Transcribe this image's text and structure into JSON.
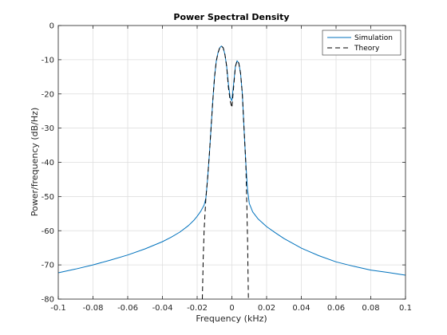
{
  "chart_data": {
    "type": "line",
    "title": "Power Spectral Density",
    "xlabel": "Frequency (kHz)",
    "ylabel": "Power/frequency (dB/Hz)",
    "xlim": [
      -0.1,
      0.1
    ],
    "ylim": [
      -80,
      0
    ],
    "xticks": [
      -0.1,
      -0.08,
      -0.06,
      -0.04,
      -0.02,
      0,
      0.02,
      0.04,
      0.06,
      0.08,
      0.1
    ],
    "xtick_labels": [
      "-0.1",
      "-0.08",
      "-0.06",
      "-0.04",
      "-0.02",
      "0",
      "0.02",
      "0.04",
      "0.06",
      "0.08",
      "0.1"
    ],
    "yticks": [
      0,
      -10,
      -20,
      -30,
      -40,
      -50,
      -60,
      -70,
      -80
    ],
    "ytick_labels": [
      "0",
      "-10",
      "-20",
      "-30",
      "-40",
      "-50",
      "-60",
      "-70",
      "-80"
    ],
    "grid": true,
    "legend_position": "top-right",
    "series": [
      {
        "name": "Simulation",
        "color": "#0072BD",
        "style": "solid",
        "x": [
          -0.1,
          -0.09,
          -0.08,
          -0.07,
          -0.06,
          -0.05,
          -0.04,
          -0.035,
          -0.03,
          -0.025,
          -0.022,
          -0.02,
          -0.018,
          -0.016,
          -0.015,
          -0.014,
          -0.013,
          -0.012,
          -0.011,
          -0.01,
          -0.009,
          -0.008,
          -0.007,
          -0.006,
          -0.005,
          -0.004,
          -0.003,
          -0.002,
          -0.001,
          0,
          0.001,
          0.002,
          0.003,
          0.004,
          0.005,
          0.006,
          0.007,
          0.008,
          0.009,
          0.01,
          0.012,
          0.015,
          0.02,
          0.025,
          0.03,
          0.04,
          0.05,
          0.06,
          0.07,
          0.08,
          0.09,
          0.1
        ],
        "y": [
          -72.3,
          -71.2,
          -70,
          -68.6,
          -67.1,
          -65.3,
          -63.2,
          -61.9,
          -60.4,
          -58.5,
          -57,
          -55.8,
          -54.4,
          -52.5,
          -50.5,
          -45,
          -38,
          -30,
          -22,
          -15,
          -10.5,
          -8,
          -6.5,
          -6,
          -6.5,
          -8.5,
          -12,
          -17,
          -21,
          -22,
          -17,
          -12,
          -10.3,
          -11,
          -14,
          -20,
          -30,
          -40,
          -48,
          -52,
          -54.5,
          -56.5,
          -58.8,
          -60.6,
          -62.3,
          -65.1,
          -67.3,
          -69.1,
          -70.4,
          -71.5,
          -72.2,
          -73
        ]
      },
      {
        "name": "Theory",
        "color": "#000000",
        "style": "dashed",
        "x": [
          -0.017,
          -0.0165,
          -0.016,
          -0.015,
          -0.014,
          -0.013,
          -0.012,
          -0.011,
          -0.01,
          -0.009,
          -0.008,
          -0.007,
          -0.006,
          -0.005,
          -0.004,
          -0.003,
          -0.002,
          -0.001,
          0,
          0.001,
          0.002,
          0.003,
          0.004,
          0.005,
          0.006,
          0.007,
          0.008,
          0.0085,
          0.009,
          0.0095
        ],
        "y": [
          -80,
          -68,
          -60,
          -50.5,
          -45,
          -38,
          -30,
          -22,
          -15,
          -10.5,
          -8,
          -6.5,
          -6,
          -6.5,
          -8.5,
          -12,
          -18,
          -22,
          -24,
          -18,
          -12,
          -10.3,
          -11,
          -14,
          -20,
          -30,
          -40,
          -50,
          -62,
          -80
        ]
      }
    ]
  }
}
